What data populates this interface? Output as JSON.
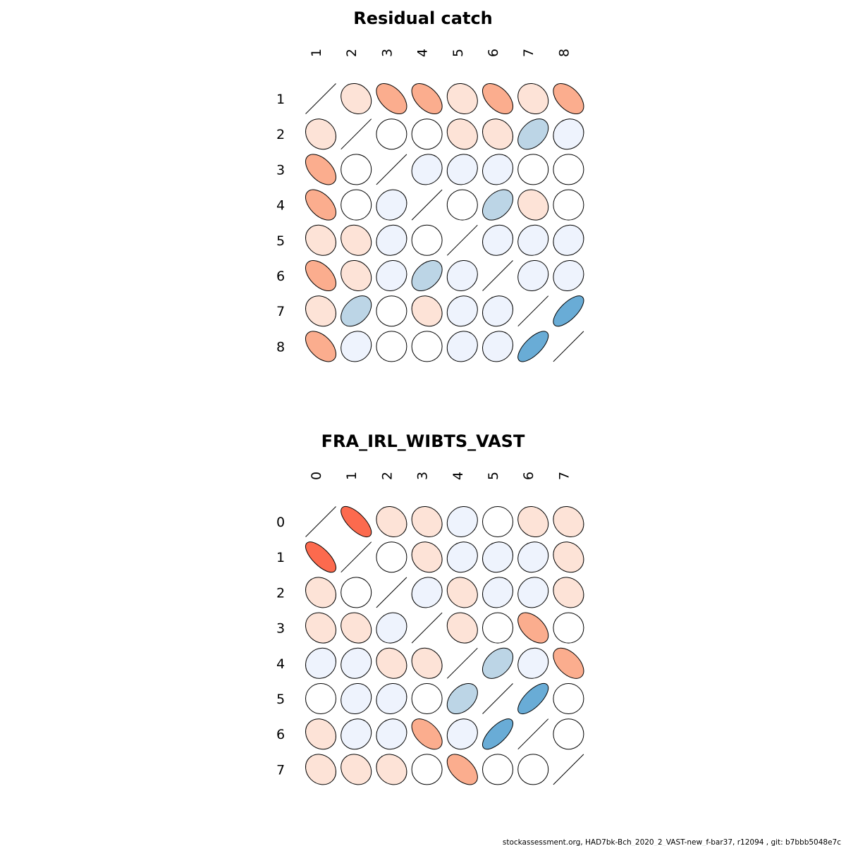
{
  "footer": "stockassessment.org, HAD7bk-Bch_2020_2_VAST-new_f-bar37, r12094 , git: b7bbb5048e7c",
  "chart_data": [
    {
      "type": "correlation-ellipse-matrix",
      "title": "Residual catch",
      "labels": [
        "1",
        "2",
        "3",
        "4",
        "5",
        "6",
        "7",
        "8"
      ],
      "matrix": [
        [
          1,
          -0.15,
          -0.5,
          -0.5,
          -0.15,
          -0.5,
          -0.15,
          -0.5
        ],
        [
          -0.15,
          1,
          0,
          0,
          -0.15,
          -0.15,
          0.4,
          0.1
        ],
        [
          -0.5,
          0,
          1,
          0.1,
          0.1,
          0.1,
          0,
          0
        ],
        [
          -0.5,
          0,
          0.1,
          1,
          0,
          0.4,
          -0.15,
          0
        ],
        [
          -0.15,
          -0.15,
          0.1,
          0,
          1,
          0.1,
          0.1,
          0.1
        ],
        [
          -0.5,
          -0.15,
          0.1,
          0.4,
          0.1,
          1,
          0.1,
          0.1
        ],
        [
          -0.15,
          0.4,
          0,
          -0.15,
          0.1,
          0.1,
          1,
          0.7
        ],
        [
          -0.5,
          0.1,
          0,
          0,
          0.1,
          0.1,
          0.7,
          1
        ]
      ]
    },
    {
      "type": "correlation-ellipse-matrix",
      "title": "FRA_IRL_WIBTS_VAST",
      "labels": [
        "0",
        "1",
        "2",
        "3",
        "4",
        "5",
        "6",
        "7"
      ],
      "matrix": [
        [
          1,
          -0.7,
          -0.15,
          -0.15,
          0.1,
          0,
          -0.15,
          -0.15
        ],
        [
          -0.7,
          1,
          0,
          -0.15,
          0.1,
          0.1,
          0.1,
          -0.15
        ],
        [
          -0.15,
          0,
          1,
          0.1,
          -0.15,
          0.1,
          0.1,
          -0.15
        ],
        [
          -0.15,
          -0.15,
          0.1,
          1,
          -0.15,
          0,
          -0.5,
          0
        ],
        [
          0.1,
          0.1,
          -0.15,
          -0.15,
          1,
          0.4,
          0.1,
          -0.5
        ],
        [
          0,
          0.1,
          0.1,
          0,
          0.4,
          1,
          0.7,
          0
        ],
        [
          -0.15,
          0.1,
          0.1,
          -0.5,
          0.1,
          0.7,
          1,
          0
        ],
        [
          -0.15,
          -0.15,
          -0.15,
          0,
          -0.5,
          0,
          0,
          1
        ]
      ]
    }
  ]
}
